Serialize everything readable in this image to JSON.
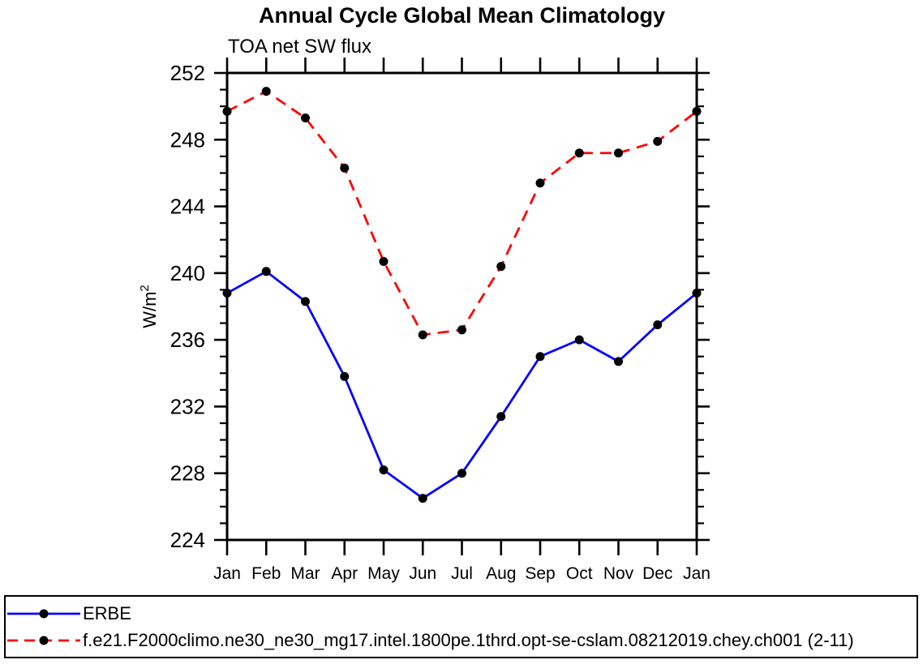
{
  "title": "Annual Cycle Global Mean Climatology",
  "subtitle": "TOA net SW flux",
  "colors": {
    "background": "#ffffff",
    "axis": "#000000",
    "marker": "#000000",
    "erbe_line": "#0000ff",
    "model_line": "#ff0000"
  },
  "chart_data": {
    "type": "line",
    "title": "Annual Cycle Global Mean Climatology",
    "subtitle": "TOA net SW flux",
    "xlabel": "",
    "ylabel": "W/m",
    "ylabel_exponent": "2",
    "ylim": [
      224,
      252
    ],
    "ytick_major": [
      224,
      228,
      232,
      236,
      240,
      244,
      248,
      252
    ],
    "ytick_minor_step": 1,
    "grid": false,
    "legend_position": "bottom",
    "x_categories": [
      "Jan",
      "Feb",
      "Mar",
      "Apr",
      "May",
      "Jun",
      "Jul",
      "Aug",
      "Sep",
      "Oct",
      "Nov",
      "Dec",
      "Jan"
    ],
    "series": [
      {
        "name": "ERBE",
        "color": "#0000ff",
        "line_style": "solid",
        "marker": "circle",
        "marker_color": "#000000",
        "values": [
          238.8,
          240.1,
          238.3,
          233.8,
          228.2,
          226.5,
          228.0,
          231.4,
          235.0,
          236.0,
          234.7,
          236.9,
          238.8
        ]
      },
      {
        "name": "f.e21.F2000climo.ne30_ne30_mg17.intel.1800pe.1thrd.opt-se-cslam.08212019.chey.ch001 (2-11)",
        "color": "#ff0000",
        "line_style": "dashed",
        "marker": "circle",
        "marker_color": "#000000",
        "values": [
          249.7,
          250.9,
          249.3,
          246.3,
          240.7,
          236.3,
          236.6,
          240.4,
          245.4,
          247.2,
          247.2,
          247.9,
          249.7
        ]
      }
    ]
  }
}
